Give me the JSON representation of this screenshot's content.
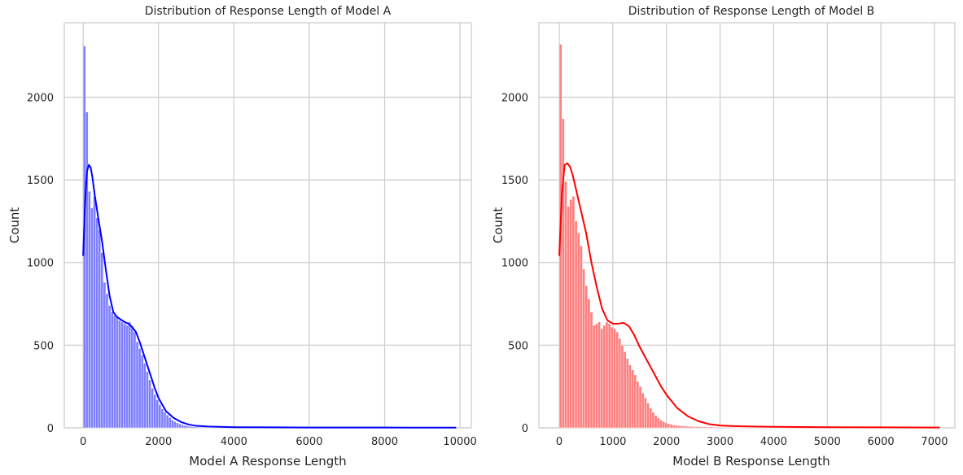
{
  "chart_data": [
    {
      "type": "bar",
      "title": "Distribution of Response Length of Model A",
      "xlabel": "Model A Response Length",
      "ylabel": "Count",
      "xlim": [
        -500,
        10300
      ],
      "ylim": [
        0,
        2450
      ],
      "xticks": [
        0,
        2000,
        4000,
        6000,
        8000,
        10000
      ],
      "xtick_labels": [
        "0",
        "2000",
        "4000",
        "6000",
        "8000",
        "10000"
      ],
      "yticks": [
        0,
        500,
        1000,
        1500,
        2000
      ],
      "ytick_labels": [
        "0",
        "500",
        "1000",
        "1500",
        "2000"
      ],
      "grid": true,
      "bar_color": "#8080ff",
      "kde_color": "#0000ff",
      "bin_width": 66.7,
      "bin_start": 0,
      "counts": [
        2310,
        1910,
        1430,
        1330,
        1400,
        1270,
        1200,
        1060,
        880,
        810,
        740,
        700,
        680,
        670,
        650,
        640,
        630,
        620,
        640,
        610,
        580,
        520,
        480,
        440,
        390,
        340,
        290,
        240,
        200,
        170,
        140,
        115,
        95,
        78,
        62,
        48,
        38,
        30,
        24,
        18,
        14,
        11,
        9,
        7,
        6,
        5,
        4,
        3,
        3,
        2,
        2,
        2,
        2,
        2,
        2,
        2,
        2,
        1,
        1,
        1,
        1,
        1,
        1,
        1,
        1,
        1,
        1,
        1,
        1,
        1,
        1,
        1,
        1,
        1,
        1,
        1,
        1,
        1,
        1,
        1,
        1,
        1,
        1,
        1,
        1,
        1,
        1,
        1,
        1,
        1,
        1,
        1,
        1,
        1,
        1,
        1,
        1,
        1,
        1,
        1,
        1,
        1,
        1,
        1,
        1,
        1,
        1,
        1,
        1,
        1,
        1,
        1,
        1,
        1,
        1,
        1,
        1,
        1,
        1,
        1,
        1,
        1,
        1,
        1,
        1,
        1,
        1,
        1,
        1,
        1,
        1,
        1,
        1,
        1,
        1,
        1,
        1,
        1,
        1,
        1,
        1,
        1,
        1,
        1,
        1,
        1,
        1,
        1,
        1
      ],
      "kde": {
        "x": [
          0,
          50,
          100,
          150,
          200,
          250,
          300,
          400,
          500,
          600,
          700,
          800,
          900,
          1000,
          1100,
          1200,
          1300,
          1400,
          1500,
          1600,
          1700,
          1800,
          1900,
          2000,
          2200,
          2400,
          2600,
          2800,
          3000,
          3300,
          3600,
          4000,
          5000,
          6000,
          7000,
          8000,
          9000,
          9900
        ],
        "y": [
          1040,
          1360,
          1550,
          1590,
          1575,
          1510,
          1420,
          1270,
          1130,
          960,
          800,
          700,
          670,
          655,
          640,
          630,
          610,
          580,
          520,
          450,
          380,
          310,
          240,
          180,
          100,
          60,
          35,
          20,
          12,
          8,
          6,
          4,
          3,
          2,
          2,
          2,
          1,
          1
        ]
      }
    },
    {
      "type": "bar",
      "title": "Distribution of Response Length of Model B",
      "xlabel": "Model B Response Length",
      "ylabel": "Count",
      "xlim": [
        -380,
        7380
      ],
      "ylim": [
        0,
        2450
      ],
      "xticks": [
        0,
        1000,
        2000,
        3000,
        4000,
        5000,
        6000,
        7000
      ],
      "xtick_labels": [
        "0",
        "1000",
        "2000",
        "3000",
        "4000",
        "5000",
        "6000",
        "7000"
      ],
      "yticks": [
        0,
        500,
        1000,
        1500,
        2000
      ],
      "ytick_labels": [
        "0",
        "500",
        "1000",
        "1500",
        "2000"
      ],
      "grid": true,
      "bar_color": "#ff8080",
      "kde_color": "#ff0000",
      "bin_width": 48,
      "bin_start": 0,
      "counts": [
        2320,
        1870,
        1490,
        1340,
        1380,
        1400,
        1250,
        1180,
        1100,
        960,
        860,
        780,
        700,
        620,
        630,
        640,
        600,
        620,
        640,
        630,
        610,
        600,
        580,
        540,
        500,
        460,
        420,
        380,
        350,
        320,
        280,
        250,
        210,
        180,
        150,
        120,
        95,
        75,
        60,
        48,
        38,
        30,
        25,
        20,
        17,
        15,
        13,
        12,
        11,
        10,
        9,
        8,
        8,
        7,
        7,
        6,
        6,
        5,
        5,
        5,
        4,
        4,
        4,
        3,
        3,
        3,
        3,
        3,
        2,
        2,
        2,
        2,
        2,
        2,
        2,
        2,
        2,
        1,
        1,
        1,
        1,
        1,
        1,
        1,
        1,
        1,
        1,
        1,
        1,
        1,
        1,
        1,
        1,
        1,
        1,
        1,
        1,
        1,
        1,
        1,
        1,
        1,
        1,
        1,
        1,
        1,
        1,
        1,
        1,
        1,
        1,
        1,
        1,
        1,
        1,
        1,
        1,
        1,
        1,
        1,
        1,
        1,
        1,
        1,
        1,
        1,
        1,
        1,
        1,
        1,
        1,
        1,
        1,
        1,
        1,
        1,
        1,
        1,
        1,
        1,
        1,
        1,
        1,
        1,
        1,
        1,
        1,
        1,
        1
      ],
      "kde": {
        "x": [
          0,
          50,
          100,
          150,
          200,
          250,
          300,
          400,
          500,
          600,
          700,
          800,
          900,
          1000,
          1100,
          1200,
          1300,
          1400,
          1500,
          1600,
          1700,
          1800,
          1900,
          2000,
          2200,
          2400,
          2600,
          2800,
          3000,
          3300,
          3600,
          4000,
          4500,
          5000,
          6000,
          7000,
          7100
        ],
        "y": [
          1040,
          1420,
          1590,
          1600,
          1580,
          1530,
          1460,
          1320,
          1180,
          1000,
          850,
          720,
          650,
          630,
          630,
          635,
          615,
          560,
          490,
          430,
          370,
          310,
          250,
          200,
          120,
          70,
          40,
          22,
          14,
          10,
          8,
          6,
          5,
          4,
          3,
          2,
          2
        ]
      }
    }
  ]
}
